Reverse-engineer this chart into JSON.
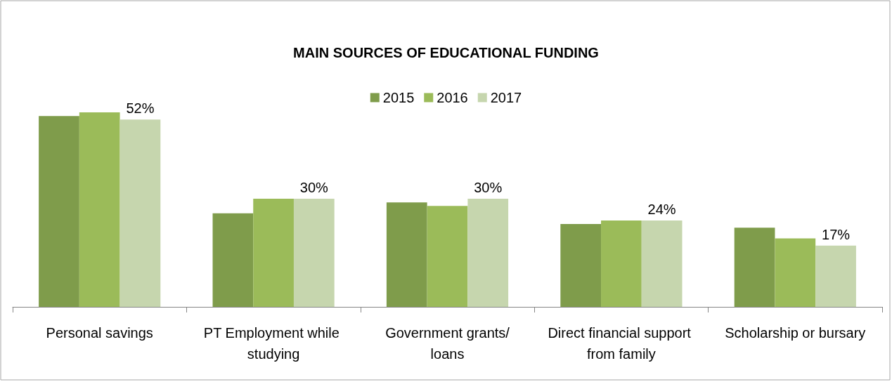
{
  "chart_data": {
    "type": "bar",
    "title": "MAIN SOURCES OF EDUCATIONAL FUNDING",
    "categories": [
      "Personal savings",
      "PT Employment while studying",
      "Government grants/loans",
      "Direct financial support from family",
      "Scholarship or bursary"
    ],
    "series": [
      {
        "name": "2015",
        "color": "#7f9c4b",
        "values": [
          53,
          26,
          29,
          23,
          22
        ]
      },
      {
        "name": "2016",
        "color": "#9bbb59",
        "values": [
          54,
          30,
          28,
          24,
          19
        ]
      },
      {
        "name": "2017",
        "color": "#c6d6ae",
        "values": [
          52,
          30,
          30,
          24,
          17
        ],
        "value_labels": [
          "52%",
          "30%",
          "30%",
          "24%",
          "17%"
        ]
      }
    ],
    "legend": "top"
  }
}
